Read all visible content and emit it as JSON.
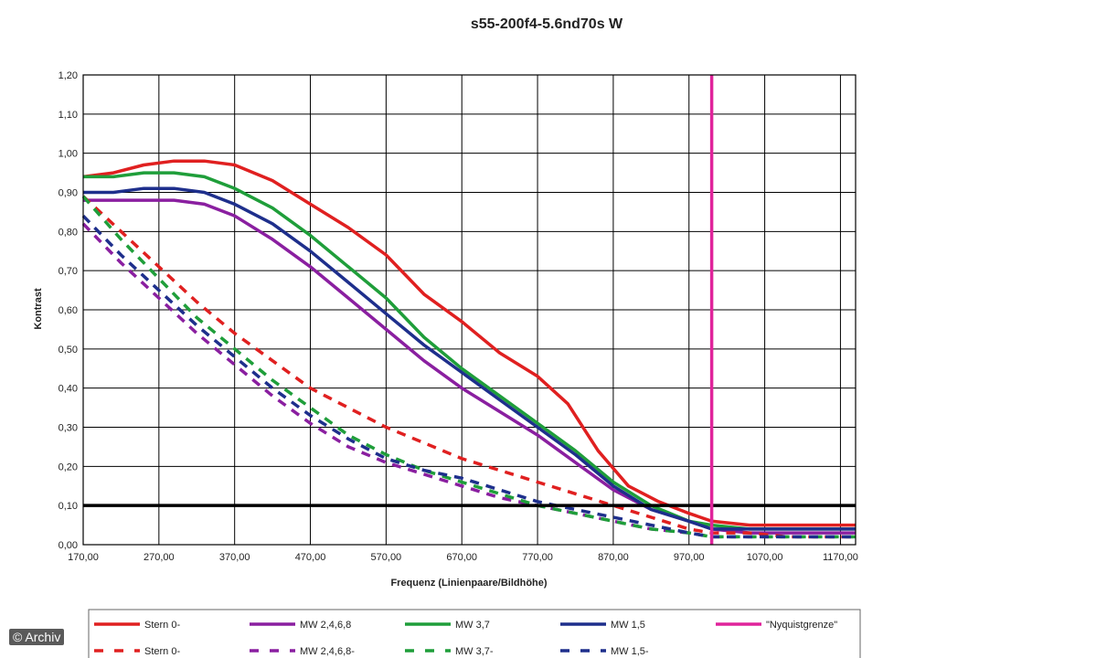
{
  "chart_data": {
    "type": "line",
    "title": "s55-200f4-5.6nd70s W",
    "xlabel": "Frequenz (Linienpaare/Bildhöhe)",
    "ylabel": "Kontrast",
    "xlim": [
      170,
      1190
    ],
    "ylim": [
      0,
      1.2
    ],
    "xticks": [
      170,
      270,
      370,
      470,
      570,
      670,
      770,
      870,
      970,
      1070,
      1170
    ],
    "xtick_labels": [
      "170,00",
      "270,00",
      "370,00",
      "470,00",
      "570,00",
      "670,00",
      "770,00",
      "870,00",
      "970,00",
      "1070,00",
      "1170,00"
    ],
    "yticks": [
      0,
      0.1,
      0.2,
      0.3,
      0.4,
      0.5,
      0.6,
      0.7,
      0.8,
      0.9,
      1.0,
      1.1,
      1.2
    ],
    "ytick_labels": [
      "0,00",
      "0,10",
      "0,20",
      "0,30",
      "0,40",
      "0,50",
      "0,60",
      "0,70",
      "0,80",
      "0,90",
      "1,00",
      "1,10",
      "1,20"
    ],
    "grid": true,
    "legend_position": "bottom",
    "reference_lines": [
      {
        "orientation": "horizontal",
        "value": 0.1,
        "color": "#000000"
      },
      {
        "orientation": "vertical",
        "value": 1000,
        "color": "#e0249b"
      }
    ],
    "series": [
      {
        "name": "Stern 0-",
        "color": "#e02020",
        "dashed": false,
        "x": [
          170,
          210,
          250,
          290,
          330,
          370,
          420,
          470,
          520,
          570,
          620,
          670,
          720,
          770,
          810,
          850,
          890,
          930,
          970,
          1000,
          1050,
          1100,
          1150,
          1190
        ],
        "y": [
          0.94,
          0.95,
          0.97,
          0.98,
          0.98,
          0.97,
          0.93,
          0.87,
          0.81,
          0.74,
          0.64,
          0.57,
          0.49,
          0.43,
          0.36,
          0.24,
          0.15,
          0.11,
          0.08,
          0.06,
          0.05,
          0.05,
          0.05,
          0.05
        ]
      },
      {
        "name": "MW 2,4,6,8",
        "color": "#8a1fa0",
        "dashed": false,
        "x": [
          170,
          210,
          250,
          290,
          330,
          370,
          420,
          470,
          520,
          570,
          620,
          670,
          720,
          770,
          820,
          870,
          920,
          970,
          1000,
          1050,
          1100,
          1150,
          1190
        ],
        "y": [
          0.88,
          0.88,
          0.88,
          0.88,
          0.87,
          0.84,
          0.78,
          0.71,
          0.63,
          0.55,
          0.47,
          0.4,
          0.34,
          0.28,
          0.21,
          0.14,
          0.09,
          0.06,
          0.04,
          0.03,
          0.03,
          0.03,
          0.03
        ]
      },
      {
        "name": "MW 3,7",
        "color": "#1f9e3a",
        "dashed": false,
        "x": [
          170,
          210,
          250,
          290,
          330,
          370,
          420,
          470,
          520,
          570,
          620,
          670,
          720,
          770,
          820,
          870,
          920,
          970,
          1000,
          1050,
          1100,
          1150,
          1190
        ],
        "y": [
          0.94,
          0.94,
          0.95,
          0.95,
          0.94,
          0.91,
          0.86,
          0.79,
          0.71,
          0.63,
          0.53,
          0.45,
          0.38,
          0.31,
          0.24,
          0.16,
          0.1,
          0.06,
          0.05,
          0.04,
          0.04,
          0.04,
          0.04
        ]
      },
      {
        "name": "MW 1,5",
        "color": "#1e2f8c",
        "dashed": false,
        "x": [
          170,
          210,
          250,
          290,
          330,
          370,
          420,
          470,
          520,
          570,
          620,
          670,
          720,
          770,
          820,
          870,
          920,
          970,
          1000,
          1050,
          1100,
          1150,
          1190
        ],
        "y": [
          0.9,
          0.9,
          0.91,
          0.91,
          0.9,
          0.87,
          0.82,
          0.75,
          0.67,
          0.59,
          0.51,
          0.44,
          0.37,
          0.3,
          0.23,
          0.15,
          0.09,
          0.06,
          0.04,
          0.04,
          0.04,
          0.04,
          0.04
        ]
      },
      {
        "name": "\"Nyquistgrenze\"",
        "color": "#e0249b",
        "dashed": false,
        "x": [
          1000,
          1000
        ],
        "y": [
          0,
          1.2
        ]
      },
      {
        "name": "Stern 0-",
        "color": "#e02020",
        "dashed": true,
        "x": [
          170,
          220,
          270,
          320,
          370,
          420,
          470,
          520,
          570,
          620,
          670,
          720,
          770,
          820,
          870,
          920,
          970,
          1000,
          1050,
          1100,
          1150,
          1190
        ],
        "y": [
          0.89,
          0.8,
          0.71,
          0.62,
          0.54,
          0.47,
          0.4,
          0.35,
          0.3,
          0.26,
          0.22,
          0.19,
          0.16,
          0.13,
          0.1,
          0.07,
          0.04,
          0.03,
          0.03,
          0.02,
          0.02,
          0.02
        ]
      },
      {
        "name": "MW 2,4,6,8-",
        "color": "#8a1fa0",
        "dashed": true,
        "x": [
          170,
          220,
          270,
          320,
          370,
          420,
          470,
          520,
          570,
          620,
          670,
          720,
          770,
          820,
          870,
          920,
          970,
          1000,
          1050,
          1100,
          1150,
          1190
        ],
        "y": [
          0.82,
          0.72,
          0.63,
          0.54,
          0.46,
          0.38,
          0.31,
          0.25,
          0.21,
          0.18,
          0.15,
          0.12,
          0.1,
          0.08,
          0.06,
          0.04,
          0.03,
          0.02,
          0.02,
          0.02,
          0.02,
          0.02
        ]
      },
      {
        "name": "MW 3,7-",
        "color": "#1f9e3a",
        "dashed": true,
        "x": [
          170,
          220,
          270,
          320,
          370,
          420,
          470,
          520,
          570,
          620,
          670,
          720,
          770,
          820,
          870,
          920,
          970,
          1000,
          1050,
          1100,
          1150,
          1190
        ],
        "y": [
          0.89,
          0.78,
          0.68,
          0.58,
          0.5,
          0.42,
          0.35,
          0.28,
          0.23,
          0.19,
          0.16,
          0.13,
          0.1,
          0.08,
          0.06,
          0.04,
          0.03,
          0.02,
          0.02,
          0.02,
          0.02,
          0.02
        ]
      },
      {
        "name": "MW 1,5-",
        "color": "#1e2f8c",
        "dashed": true,
        "x": [
          170,
          220,
          270,
          320,
          370,
          420,
          470,
          520,
          570,
          620,
          670,
          720,
          770,
          820,
          870,
          920,
          970,
          1000,
          1050,
          1100,
          1150,
          1190
        ],
        "y": [
          0.84,
          0.74,
          0.65,
          0.56,
          0.48,
          0.4,
          0.33,
          0.27,
          0.22,
          0.19,
          0.17,
          0.14,
          0.11,
          0.09,
          0.07,
          0.05,
          0.03,
          0.02,
          0.02,
          0.02,
          0.02,
          0.02
        ]
      }
    ]
  },
  "legend": [
    {
      "label": "Stern 0-",
      "color": "#e02020",
      "dashed": false
    },
    {
      "label": "MW 2,4,6,8",
      "color": "#8a1fa0",
      "dashed": false
    },
    {
      "label": "MW 3,7",
      "color": "#1f9e3a",
      "dashed": false
    },
    {
      "label": "MW 1,5",
      "color": "#1e2f8c",
      "dashed": false
    },
    {
      "label": "\"Nyquistgrenze\"",
      "color": "#e0249b",
      "dashed": false
    },
    {
      "label": "Stern 0-",
      "color": "#e02020",
      "dashed": true
    },
    {
      "label": "MW 2,4,6,8-",
      "color": "#8a1fa0",
      "dashed": true
    },
    {
      "label": "MW 3,7-",
      "color": "#1f9e3a",
      "dashed": true
    },
    {
      "label": "MW 1,5-",
      "color": "#1e2f8c",
      "dashed": true
    }
  ],
  "credit": "© Archiv"
}
